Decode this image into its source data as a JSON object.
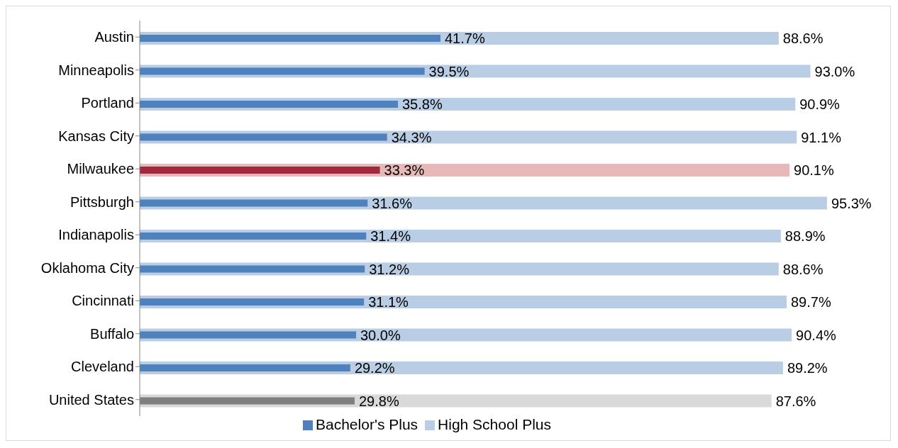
{
  "chart_data": {
    "type": "bar",
    "orientation": "horizontal",
    "categories": [
      "Austin",
      "Minneapolis",
      "Portland",
      "Kansas City",
      "Milwaukee",
      "Pittsburgh",
      "Indianapolis",
      "Oklahoma City",
      "Cincinnati",
      "Buffalo",
      "Cleveland",
      "United States"
    ],
    "series": [
      {
        "name": "Bachelor's Plus",
        "color": "#4f81bd",
        "colors": [
          "#4f81bd",
          "#4f81bd",
          "#4f81bd",
          "#4f81bd",
          "#a0283f",
          "#4f81bd",
          "#4f81bd",
          "#4f81bd",
          "#4f81bd",
          "#4f81bd",
          "#4f81bd",
          "#808080"
        ],
        "values": [
          41.7,
          39.5,
          35.8,
          34.3,
          33.3,
          31.6,
          31.4,
          31.2,
          31.1,
          30.0,
          29.2,
          29.8
        ],
        "value_labels": [
          "41.7%",
          "39.5%",
          "35.8%",
          "34.3%",
          "33.3%",
          "31.6%",
          "31.4%",
          "31.2%",
          "31.1%",
          "30.0%",
          "29.2%",
          "29.8%"
        ]
      },
      {
        "name": "High School Plus",
        "color": "#b9cde5",
        "colors": [
          "#b9cde5",
          "#b9cde5",
          "#b9cde5",
          "#b9cde5",
          "#e6b9b8",
          "#b9cde5",
          "#b9cde5",
          "#b9cde5",
          "#b9cde5",
          "#b9cde5",
          "#b9cde5",
          "#d9d9d9"
        ],
        "values": [
          88.6,
          93.0,
          90.9,
          91.1,
          90.1,
          95.3,
          88.9,
          88.6,
          89.7,
          90.4,
          89.2,
          87.6
        ],
        "value_labels": [
          "88.6%",
          "93.0%",
          "90.9%",
          "91.1%",
          "90.1%",
          "95.3%",
          "88.9%",
          "88.6%",
          "89.7%",
          "90.4%",
          "89.2%",
          "87.6%"
        ]
      }
    ],
    "grid": false,
    "legend": "bottom",
    "tick_labels": "y"
  }
}
